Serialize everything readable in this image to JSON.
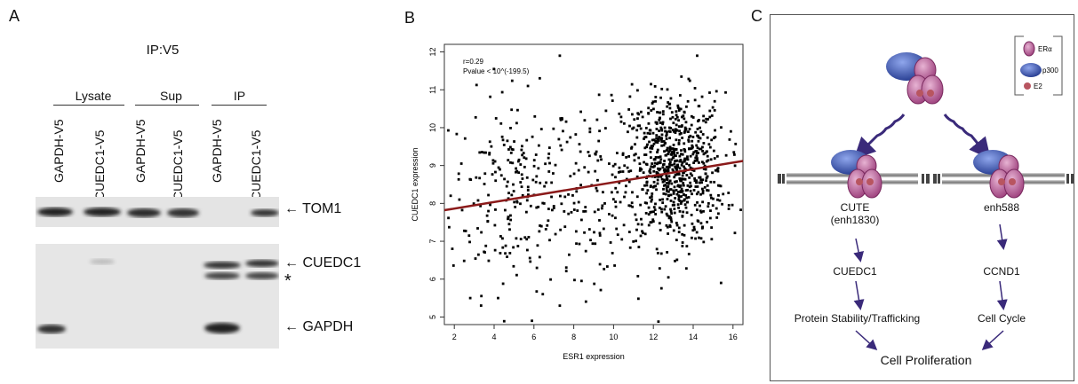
{
  "panelA": {
    "letter": "A",
    "title": "IP:V5",
    "groups": [
      "Lysate",
      "Sup",
      "IP"
    ],
    "lanes": [
      "GAPDH-V5",
      "CUEDC1-V5",
      "GAPDH-V5",
      "CUEDC1-V5",
      "GAPDH-V5",
      "CUEDC1-V5"
    ],
    "markers": [
      "TOM1",
      "CUEDC1",
      "*",
      "GAPDH"
    ]
  },
  "panelB": {
    "letter": "B",
    "chart_data": {
      "type": "scatter",
      "xlabel": "ESR1 expression",
      "ylabel": "CUEDC1 expression",
      "xlim": [
        1.5,
        16.5
      ],
      "ylim": [
        4.8,
        12.2
      ],
      "xticks": [
        "2",
        "4",
        "6",
        "8",
        "10",
        "12",
        "14",
        "16"
      ],
      "yticks": [
        "5",
        "6",
        "7",
        "8",
        "9",
        "10",
        "11",
        "12"
      ],
      "annotation_r": "r=0.29",
      "annotation_p": "Pvalue < 10^(-199.5)",
      "trendline": {
        "x": [
          1.5,
          16.5
        ],
        "y": [
          7.82,
          9.12
        ],
        "color": "#8b1a1a"
      },
      "point_color": "#000000",
      "notable_points": [
        {
          "x": 7.3,
          "y": 11.9
        },
        {
          "x": 14.2,
          "y": 11.9
        },
        {
          "x": 5.7,
          "y": 11.1
        },
        {
          "x": 5.9,
          "y": 4.9
        },
        {
          "x": 2.8,
          "y": 5.5
        },
        {
          "x": 4.2,
          "y": 5.5
        },
        {
          "x": 7.3,
          "y": 5.3
        },
        {
          "x": 15.4,
          "y": 5.9
        },
        {
          "x": 1.9,
          "y": 6.8
        }
      ],
      "clusters": [
        {
          "cx": 5.0,
          "cy": 8.3,
          "sx": 1.6,
          "sy": 1.3,
          "n": 230
        },
        {
          "cx": 9.0,
          "cy": 8.3,
          "sx": 1.0,
          "sy": 1.1,
          "n": 90
        },
        {
          "cx": 13.0,
          "cy": 8.9,
          "sx": 1.3,
          "sy": 1.0,
          "n": 780
        }
      ]
    }
  },
  "panelC": {
    "letter": "C",
    "legend": [
      "ERα",
      "p300",
      "E2"
    ],
    "left_enhancer": "CUTE",
    "left_enhancer_sub": "(enh1830)",
    "right_enhancer": "enh588",
    "left_gene": "CUEDC1",
    "right_gene": "CCND1",
    "left_function": "Protein Stability/Trafficking",
    "right_function": "Cell Cycle",
    "outcome": "Cell Proliferation",
    "colors": {
      "er": "#c26aa0",
      "er_dark": "#8a2a6a",
      "p300": "#3a57b8",
      "e2": "#b85560",
      "arrow": "#3a2a7a"
    }
  }
}
